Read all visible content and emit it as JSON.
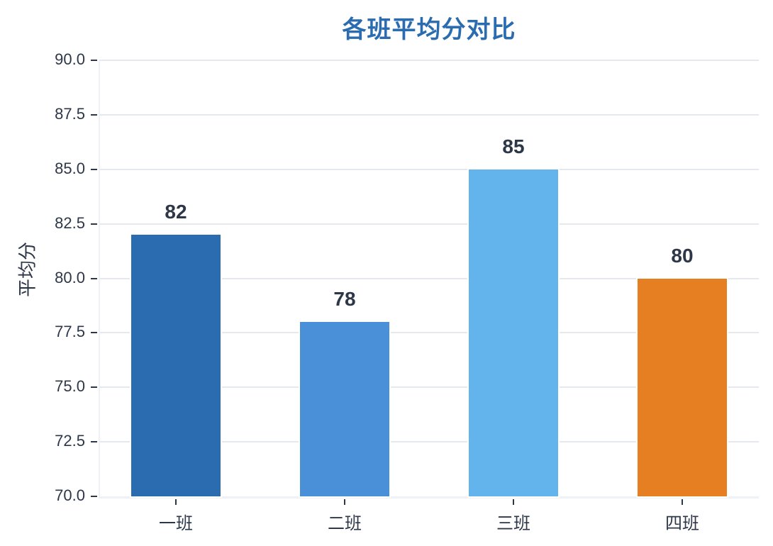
{
  "chart_data": {
    "type": "bar",
    "title": "各班平均分对比",
    "xlabel": "",
    "ylabel": "平均分",
    "categories": [
      "一班",
      "二班",
      "三班",
      "四班"
    ],
    "values": [
      82,
      78,
      85,
      80
    ],
    "data_labels": [
      "82",
      "78",
      "85",
      "80"
    ],
    "colors": [
      "#2b6cb0",
      "#4a90d9",
      "#63b3ed",
      "#e67e22"
    ],
    "ylim": [
      70.0,
      90.0
    ],
    "yticks": [
      "70.0",
      "72.5",
      "75.0",
      "77.5",
      "80.0",
      "82.5",
      "85.0",
      "87.5",
      "90.0"
    ],
    "grid": "horizontal",
    "legend": null,
    "title_color": "#2b6cb0"
  }
}
